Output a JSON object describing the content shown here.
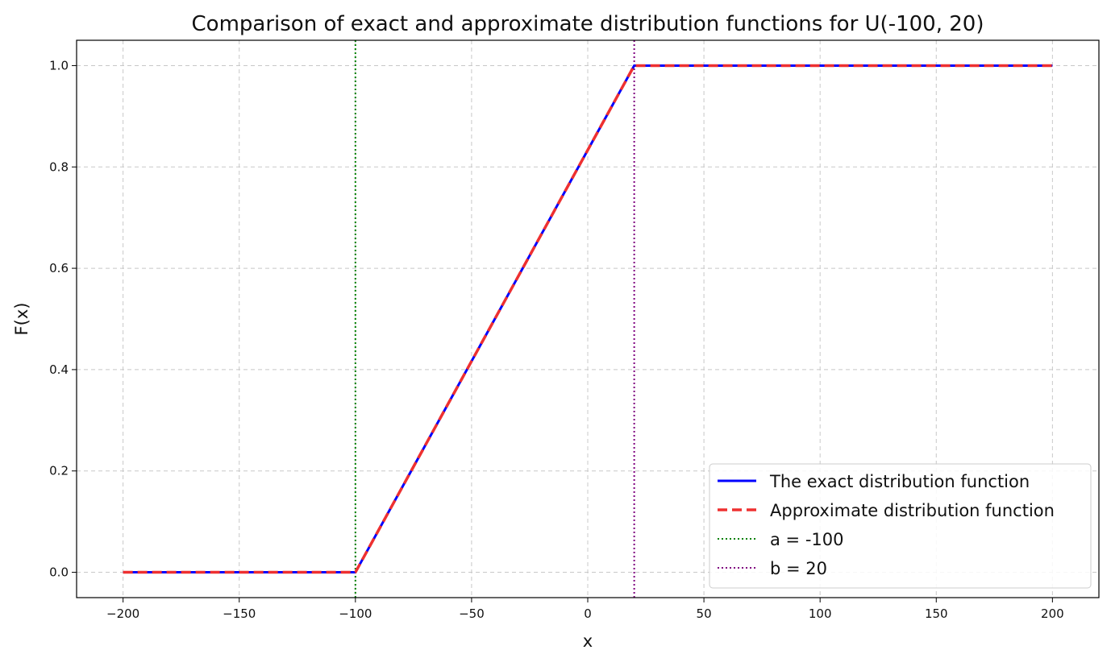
{
  "chart_data": {
    "type": "line",
    "title": "Comparison of exact and approximate distribution functions for U(-100, 20)",
    "xlabel": "x",
    "ylabel": "F(x)",
    "xlim": [
      -220,
      220
    ],
    "ylim": [
      -0.05,
      1.05
    ],
    "xticks": [
      -200,
      -150,
      -100,
      -50,
      0,
      50,
      100,
      150,
      200
    ],
    "xtick_labels": [
      "−200",
      "−150",
      "−100",
      "−50",
      "0",
      "50",
      "100",
      "150",
      "200"
    ],
    "yticks": [
      0.0,
      0.2,
      0.4,
      0.6,
      0.8,
      1.0
    ],
    "ytick_labels": [
      "0.0",
      "0.2",
      "0.4",
      "0.6",
      "0.8",
      "1.0"
    ],
    "grid": true,
    "legend_position": "lower-right",
    "series": [
      {
        "name": "The exact distribution function",
        "style": "solid",
        "color": "#0000ff",
        "x": [
          -200,
          -100,
          20,
          200
        ],
        "y": [
          0,
          0,
          1,
          1
        ]
      },
      {
        "name": "Approximate distribution function",
        "style": "dashed",
        "color": "#ee3030",
        "x": [
          -200,
          -100,
          20,
          200
        ],
        "y": [
          0,
          0,
          1,
          1
        ]
      }
    ],
    "vlines": [
      {
        "name": "a = -100",
        "x": -100,
        "style": "dotted",
        "color": "#008000"
      },
      {
        "name": "b = 20",
        "x": 20,
        "style": "dotted",
        "color": "#800080"
      }
    ]
  }
}
